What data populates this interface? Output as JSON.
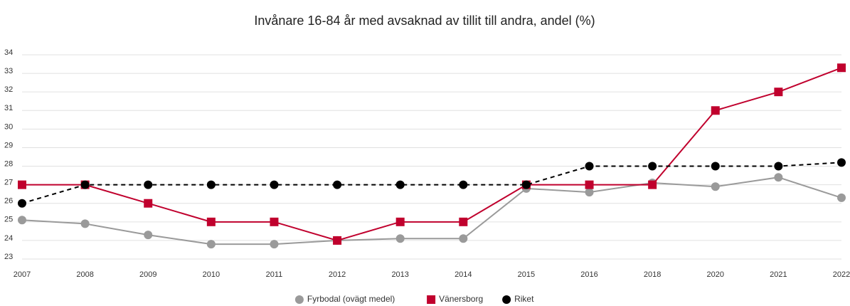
{
  "chart_data": {
    "type": "line",
    "title": "Invånare 16-84 år med avsaknad av tillit till andra, andel (%)",
    "categories": [
      "2007",
      "2008",
      "2009",
      "2010",
      "2011",
      "2012",
      "2013",
      "2014",
      "2015",
      "2016",
      "2018",
      "2020",
      "2021",
      "2022"
    ],
    "series": [
      {
        "name": "Fyrbodal (ovägt medel)",
        "color": "#9a9a9a",
        "marker": "circle",
        "dashed": false,
        "values": [
          25.1,
          24.9,
          24.3,
          23.8,
          23.8,
          24.0,
          24.1,
          24.1,
          26.8,
          26.6,
          27.1,
          26.9,
          27.4,
          26.3
        ]
      },
      {
        "name": "Vänersborg",
        "color": "#c0002d",
        "marker": "square",
        "dashed": false,
        "values": [
          27,
          27,
          26,
          25,
          25,
          24,
          25,
          25,
          27,
          27,
          27,
          31,
          32,
          33.3
        ]
      },
      {
        "name": "Riket",
        "color": "#000000",
        "marker": "circle",
        "dashed": true,
        "values": [
          26,
          27,
          27,
          27,
          27,
          27,
          27,
          27,
          27,
          28,
          28,
          28,
          28,
          28.2
        ]
      }
    ],
    "ylim": [
      23,
      34
    ],
    "yticks": [
      23,
      24,
      25,
      26,
      27,
      28,
      29,
      30,
      31,
      32,
      33,
      34
    ],
    "grid": true,
    "legend": "bottom"
  }
}
